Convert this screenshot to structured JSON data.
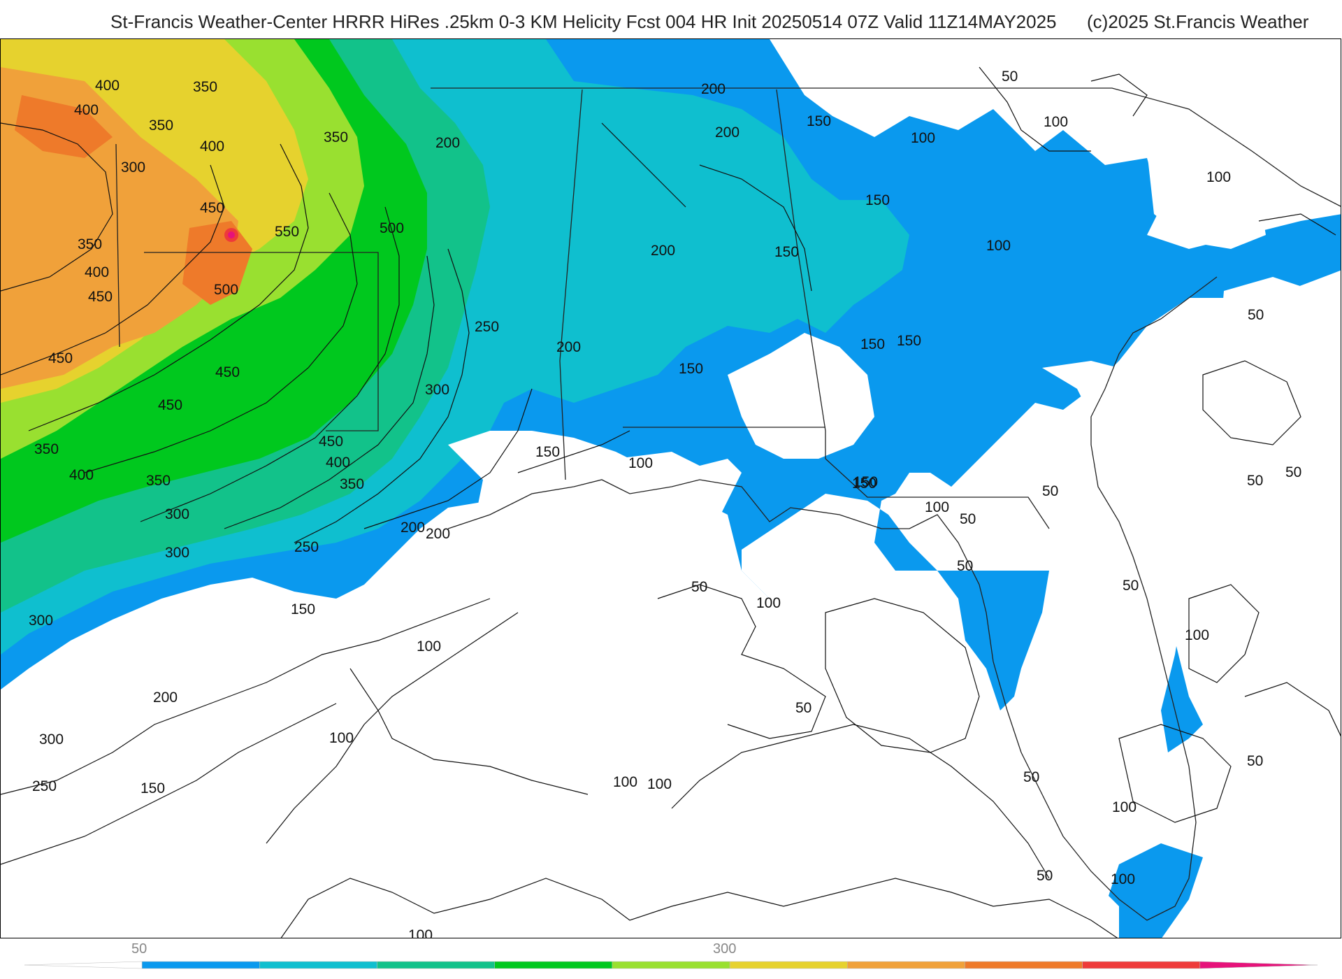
{
  "header": {
    "title": "St-Francis Weather-Center HRRR HiRes .25km 0-3 KM Helicity Fcst 004 HR Init 20250514 07Z  Valid 11Z14MAY2025",
    "copyright": "(c)2025 St.Francis Weather"
  },
  "map": {
    "field": "0-3 KM Helicity",
    "contour_labels": [
      "400",
      "350",
      "400",
      "350",
      "400",
      "300",
      "350",
      "450",
      "550",
      "500",
      "350",
      "400",
      "450",
      "500",
      "450",
      "450",
      "450",
      "350",
      "400",
      "350",
      "300",
      "300",
      "250",
      "200",
      "200",
      "200",
      "200",
      "150",
      "150",
      "100",
      "150",
      "100",
      "100",
      "50",
      "200",
      "250",
      "200",
      "150",
      "150",
      "150",
      "150",
      "300",
      "450",
      "400",
      "350",
      "200",
      "150",
      "100",
      "150",
      "50",
      "100",
      "50",
      "50",
      "300",
      "150",
      "100",
      "200",
      "300",
      "250",
      "150",
      "100",
      "100",
      "100",
      "100",
      "50",
      "100",
      "50",
      "50",
      "100",
      "50",
      "50",
      "50",
      "100",
      "50",
      "100",
      "100",
      "50",
      "50"
    ]
  },
  "colorbar": {
    "tick_labels": [
      "50",
      "300"
    ],
    "colors": [
      "#ffffff",
      "#0a99ee",
      "#0fbfcf",
      "#12c28a",
      "#00c81e",
      "#99e030",
      "#e6d22e",
      "#f0a13a",
      "#ee7a2a",
      "#ee3a3a",
      "#e6127a"
    ]
  }
}
